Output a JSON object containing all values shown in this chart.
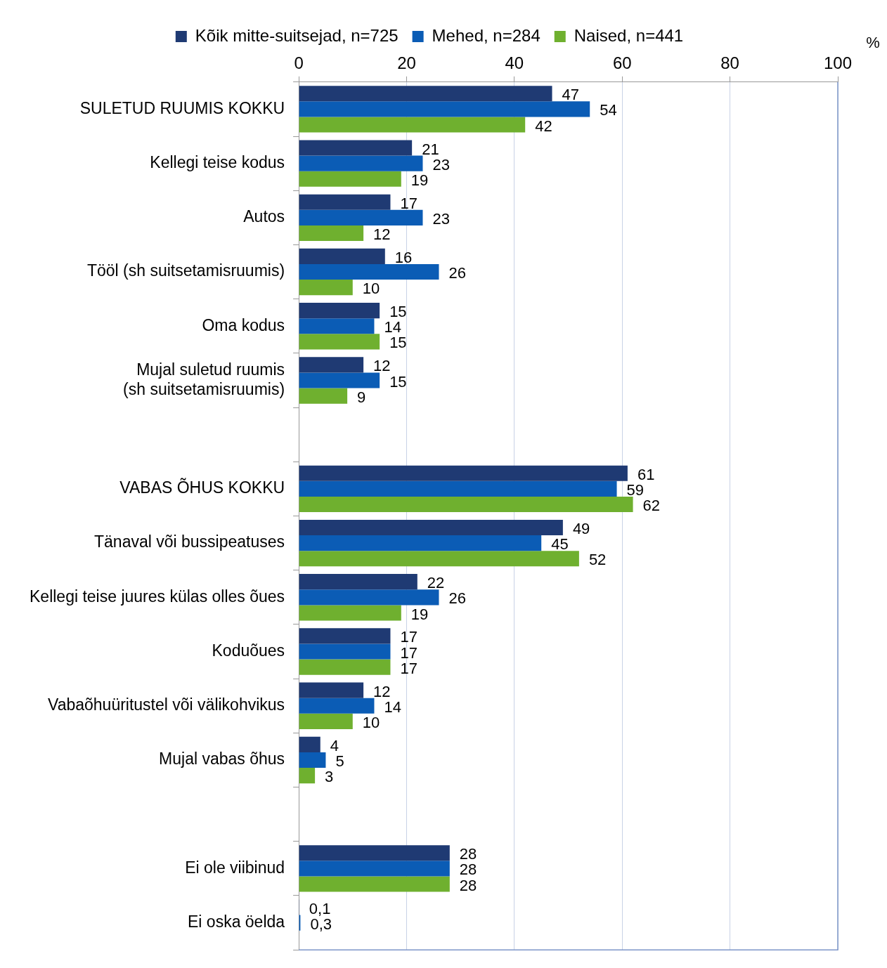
{
  "chart_data": {
    "type": "bar",
    "orientation": "horizontal",
    "xlabel": "%",
    "categories": [
      "SULETUD RUUMIS KOKKU",
      "Kellegi teise kodus",
      "Autos",
      "Tööl (sh suitsetamisruumis)",
      "Oma kodus",
      "Mujal suletud ruumis (sh suitsetamisruumis)",
      null,
      "VABAS ÕHUS KOKKU",
      "Tänaval või bussipeatuses",
      "Kellegi teise juures külas olles õues",
      "Koduõues",
      "Vabaõhuüritustel või välikohvikus",
      "Mujal vabas õhus",
      null,
      "Ei ole viibinud",
      "Ei oska öelda"
    ],
    "series": [
      {
        "name": "Kõik mitte-suitsejad, n=725",
        "color": "#1f3a73",
        "values": [
          47,
          21,
          17,
          16,
          15,
          12,
          null,
          61,
          49,
          22,
          17,
          12,
          4,
          null,
          28,
          0.1
        ],
        "value_labels": [
          "47",
          "21",
          "17",
          "16",
          "15",
          "12",
          null,
          "61",
          "49",
          "22",
          "17",
          "12",
          "4",
          null,
          "28",
          "0,1"
        ]
      },
      {
        "name": "Mehed, n=284",
        "color": "#0b5cb5",
        "values": [
          54,
          23,
          23,
          26,
          14,
          15,
          null,
          59,
          45,
          26,
          17,
          14,
          5,
          null,
          28,
          0.3
        ],
        "value_labels": [
          "54",
          "23",
          "23",
          "26",
          "14",
          "15",
          null,
          "59",
          "45",
          "26",
          "17",
          "14",
          "5",
          null,
          "28",
          "0,3"
        ]
      },
      {
        "name": "Naised, n=441",
        "color": "#6fb02f",
        "values": [
          42,
          19,
          12,
          10,
          15,
          9,
          null,
          62,
          52,
          19,
          17,
          10,
          3,
          null,
          28,
          null
        ],
        "value_labels": [
          "42",
          "19",
          "12",
          "10",
          "15",
          "9",
          null,
          "62",
          "52",
          "19",
          "17",
          "10",
          "3",
          null,
          "28",
          null
        ]
      }
    ],
    "xlim": [
      0,
      100
    ],
    "xticks": [
      0,
      20,
      40,
      60,
      80,
      100
    ],
    "grid": "x",
    "legend": "top"
  }
}
